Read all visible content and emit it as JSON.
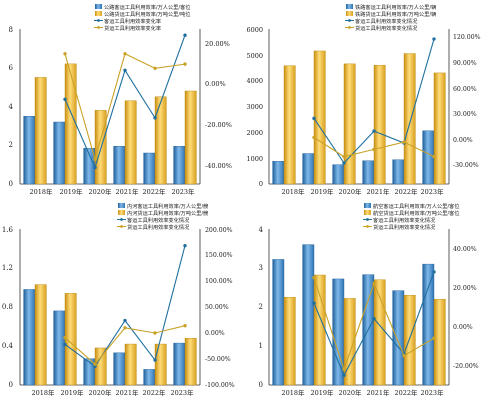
{
  "colors": {
    "bar_blue": "#4f94d4",
    "bar_blue_dark": "#1f5f9a",
    "bar_gold": "#f5be3c",
    "bar_gold_dark": "#b8860b",
    "line_blue": "#1f6f9f",
    "line_gold": "#c9a227"
  },
  "chart_data": [
    {
      "type": "bar",
      "categories": [
        "2018年",
        "2019年",
        "2020年",
        "2021年",
        "2022年",
        "2023年"
      ],
      "series": [
        {
          "name": "公路客运工具利用效率/万人公里/客位",
          "kind": "bar",
          "axis": "left",
          "values": [
            3.5,
            3.2,
            1.85,
            1.95,
            1.6,
            1.95
          ]
        },
        {
          "name": "公路货运工具利用效率/万吨公里/吨位",
          "kind": "bar",
          "axis": "left",
          "values": [
            5.5,
            6.2,
            3.8,
            4.3,
            4.5,
            4.8
          ]
        },
        {
          "name": "客运工具利用效率变化率",
          "kind": "line",
          "axis": "right",
          "values": [
            null,
            -9,
            -42,
            5,
            -18,
            22
          ]
        },
        {
          "name": "货运工具利用效率变化率",
          "kind": "line",
          "axis": "right",
          "values": [
            null,
            13,
            -38,
            13,
            6,
            8
          ]
        }
      ],
      "ylim": [
        0,
        8
      ],
      "yticks": [
        "0",
        "2",
        "4",
        "6",
        "8"
      ],
      "y2lim": [
        -50,
        25
      ],
      "y2ticks": [
        "-40.00%",
        "-20.00%",
        "0.00%",
        "20.00%"
      ],
      "legend": "top"
    },
    {
      "type": "bar",
      "categories": [
        "2018年",
        "2019年",
        "2020年",
        "2021年",
        "2022年",
        "2023年"
      ],
      "series": [
        {
          "name": "铁路客运工具利用效率/万人公里/辆",
          "kind": "bar",
          "axis": "left",
          "values": [
            880,
            1180,
            750,
            900,
            940,
            2060
          ]
        },
        {
          "name": "铁路货运工具利用效率/万吨公里/辆",
          "kind": "bar",
          "axis": "left",
          "values": [
            4580,
            5150,
            4650,
            4600,
            5050,
            4300
          ]
        },
        {
          "name": "客运工具利用效率变化情况",
          "kind": "line",
          "axis": "right",
          "values": [
            null,
            32,
            -17,
            18,
            5,
            119
          ]
        },
        {
          "name": "货运工具利用效率变化情况",
          "kind": "line",
          "axis": "right",
          "values": [
            null,
            11,
            -10,
            -2,
            6,
            -10
          ]
        }
      ],
      "ylim": [
        0,
        6000
      ],
      "yticks": [
        "0",
        "1000",
        "2000",
        "3000",
        "4000",
        "5000",
        "6000"
      ],
      "y2lim": [
        -40,
        130
      ],
      "y2ticks": [
        "-30.00%",
        "0.00%",
        "30.00%",
        "60.00%",
        "90.00%",
        "120.00%"
      ],
      "legend": "top"
    },
    {
      "type": "bar",
      "categories": [
        "2018年",
        "2019年",
        "2020年",
        "2021年",
        "2022年",
        "2023年"
      ],
      "series": [
        {
          "name": "内河客运工具利用效率/万人公里/艘",
          "kind": "bar",
          "axis": "left",
          "values": [
            0.98,
            0.76,
            0.27,
            0.33,
            0.16,
            0.43
          ]
        },
        {
          "name": "内河货运工具利用效率/万吨公里/艘",
          "kind": "bar",
          "axis": "left",
          "values": [
            1.03,
            0.94,
            0.38,
            0.42,
            0.42,
            0.48
          ]
        },
        {
          "name": "客运工具利用效率变化情况",
          "kind": "line",
          "axis": "right",
          "values": [
            null,
            -22,
            -64,
            24,
            -52,
            168
          ]
        },
        {
          "name": "货运工具利用效率变化情况",
          "kind": "line",
          "axis": "right",
          "values": [
            null,
            -9,
            -60,
            10,
            0,
            14
          ]
        }
      ],
      "ylim": [
        0,
        1.6
      ],
      "yticks": [
        "0",
        "0.4",
        "0.8",
        "1.2",
        "1.6"
      ],
      "y2lim": [
        -100,
        200
      ],
      "y2ticks": [
        "-100.00%",
        "-50.00%",
        "0.00%",
        "50.00%",
        "100.00%",
        "150.00%",
        "200.00%"
      ],
      "legend": "top"
    },
    {
      "type": "bar",
      "categories": [
        "2018年",
        "2019年",
        "2020年",
        "2021年",
        "2022年",
        "2023年"
      ],
      "series": [
        {
          "name": "航空客运工具利用效率/万人公里/客位",
          "kind": "bar",
          "axis": "left",
          "values": [
            3.22,
            3.6,
            2.72,
            2.83,
            2.42,
            3.1
          ]
        },
        {
          "name": "航空货运工具利用效率/万吨公里/客位",
          "kind": "bar",
          "axis": "left",
          "values": [
            2.25,
            2.82,
            2.22,
            2.7,
            2.3,
            2.2
          ]
        },
        {
          "name": "客运工具利用效率变化情况",
          "kind": "line",
          "axis": "right",
          "values": [
            null,
            12,
            -25,
            4,
            -14,
            28
          ]
        },
        {
          "name": "货运工具利用效率变化情况",
          "kind": "line",
          "axis": "right",
          "values": [
            null,
            25,
            -22,
            22,
            -15,
            -6
          ]
        }
      ],
      "ylim": [
        0,
        4
      ],
      "yticks": [
        "0",
        "1",
        "2",
        "3",
        "4"
      ],
      "y2lim": [
        -30,
        50
      ],
      "y2ticks": [
        "-20.00%",
        "0.00%",
        "20.00%",
        "40.00%"
      ],
      "legend": "top"
    }
  ]
}
